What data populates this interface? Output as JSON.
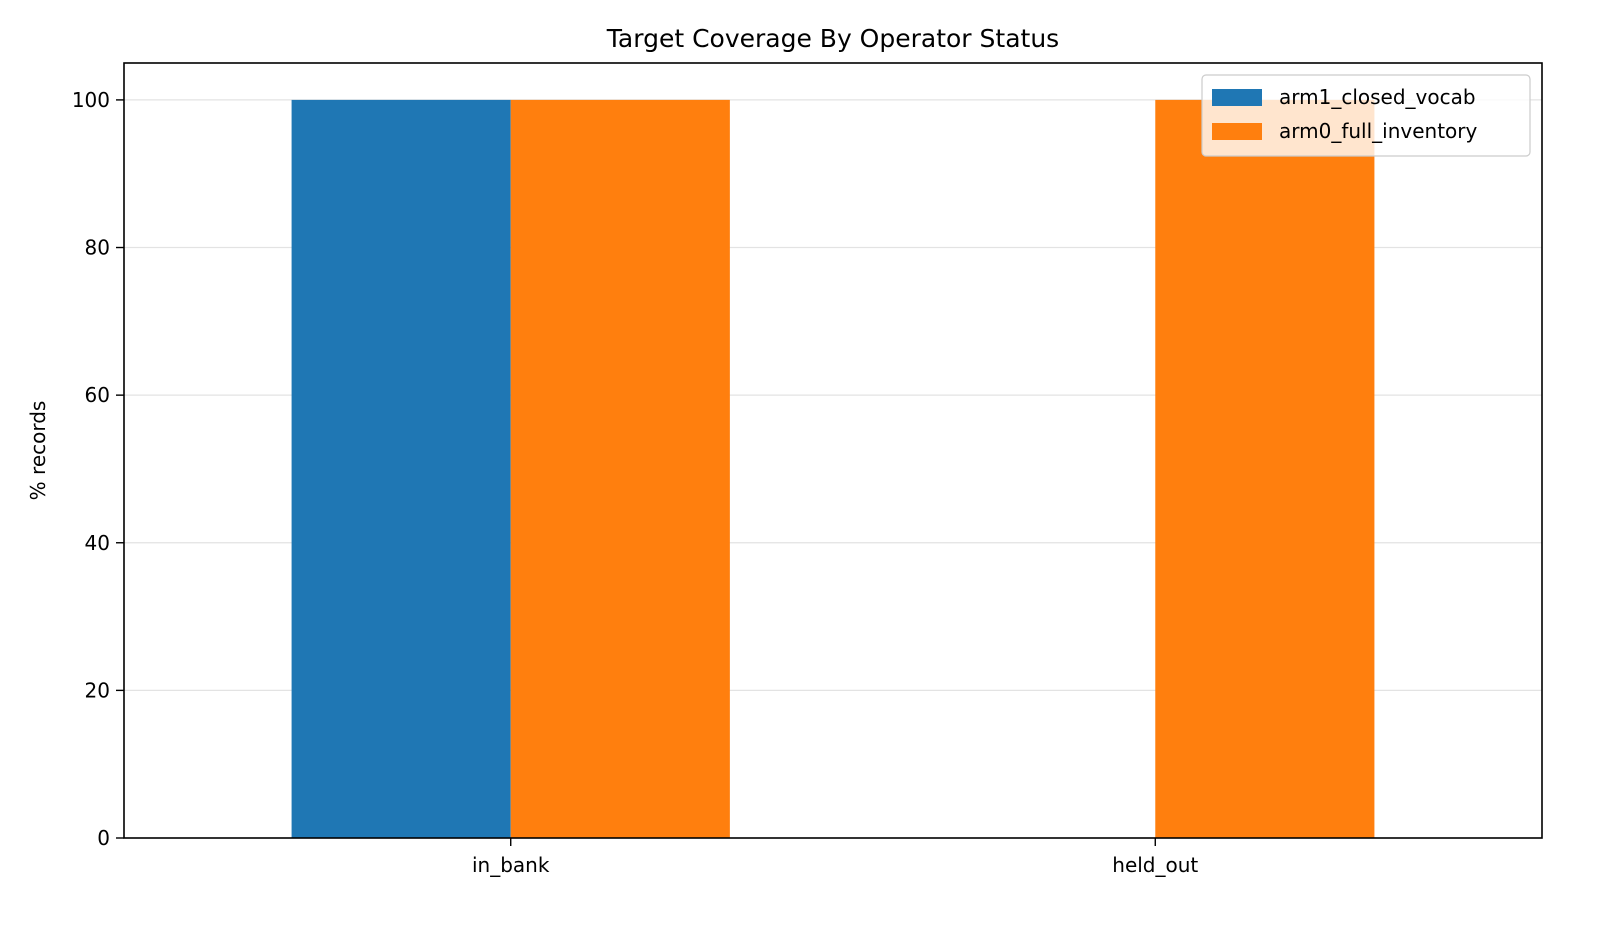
{
  "chart_data": {
    "type": "bar",
    "title": "Target Coverage By Operator Status",
    "xlabel": "",
    "ylabel": "% records",
    "categories": [
      "in_bank",
      "held_out"
    ],
    "series": [
      {
        "name": "arm1_closed_vocab",
        "values": [
          100,
          0
        ],
        "color": "#1f77b4"
      },
      {
        "name": "arm0_full_inventory",
        "values": [
          100,
          100
        ],
        "color": "#ff7f0e"
      }
    ],
    "ylim": [
      0,
      105
    ],
    "yticks": [
      0,
      20,
      40,
      60,
      80,
      100
    ],
    "grid": "y",
    "legend_position": "top-right"
  }
}
